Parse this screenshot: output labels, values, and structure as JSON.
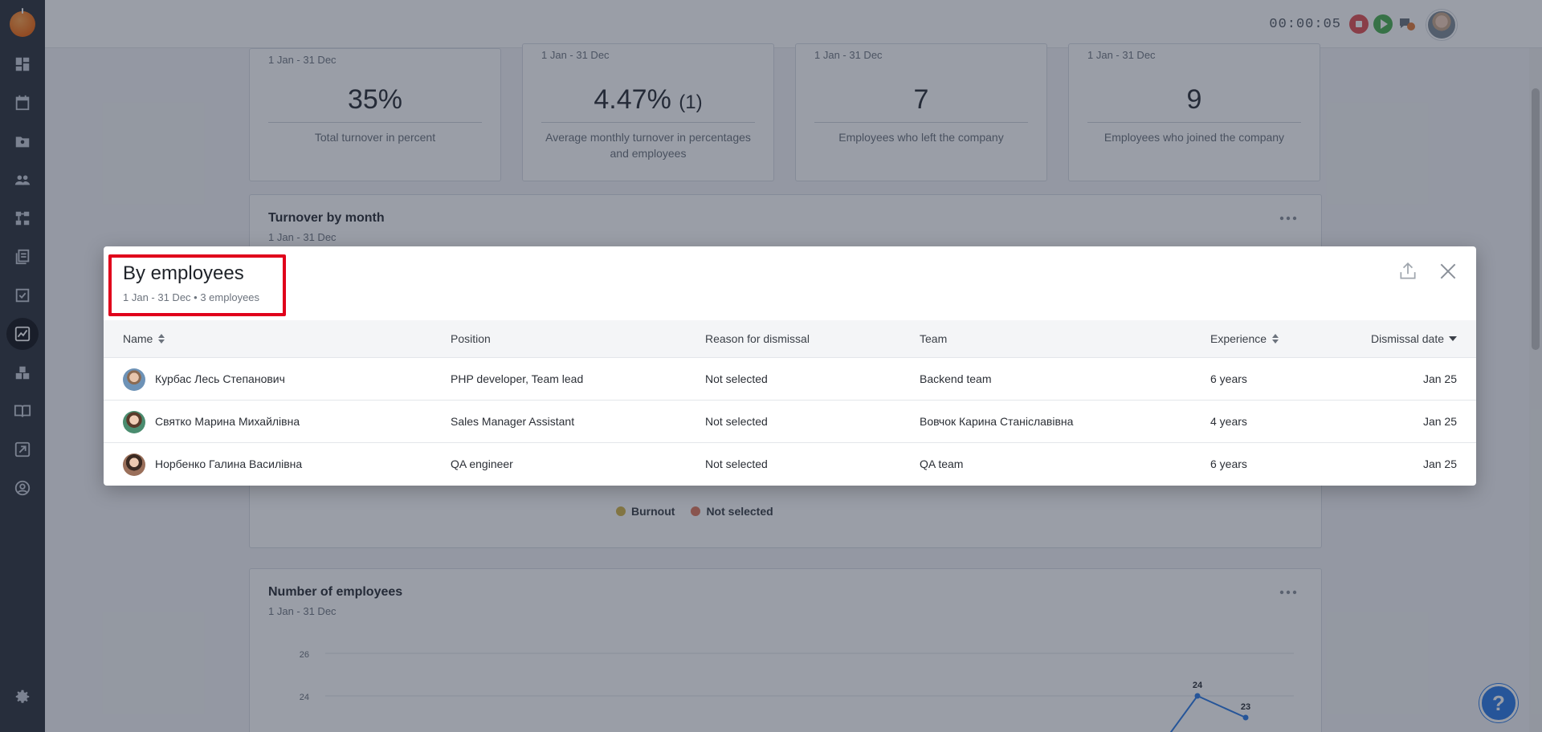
{
  "header": {
    "timer": "00:00:05"
  },
  "stats": [
    {
      "range": "1 Jan - 31 Dec",
      "value": "35%",
      "value_sub": "",
      "label": "Total turnover in percent"
    },
    {
      "range": "1 Jan - 31 Dec",
      "value": "4.47%",
      "value_sub": "(1)",
      "label": "Average monthly turnover in percentages and employees"
    },
    {
      "range": "1 Jan - 31 Dec",
      "value": "7",
      "value_sub": "",
      "label": "Employees who left the company"
    },
    {
      "range": "1 Jan - 31 Dec",
      "value": "9",
      "value_sub": "",
      "label": "Employees who joined the company"
    }
  ],
  "turnover_panel": {
    "title": "Turnover by month",
    "range": "1 Jan - 31 Dec",
    "legend": [
      {
        "label": "Burnout",
        "color": "#d4b54a"
      },
      {
        "label": "Not selected",
        "color": "#e07a5f"
      }
    ]
  },
  "employees_panel": {
    "title": "Number of employees",
    "range": "1 Jan - 31 Dec"
  },
  "chart_data": {
    "type": "line",
    "title": "Number of employees",
    "yticks": [
      26,
      24
    ],
    "points": [
      {
        "label": "24",
        "y": 24
      },
      {
        "label": "23",
        "y": 23
      }
    ]
  },
  "modal": {
    "title": "By employees",
    "subtitle": "1 Jan - 31 Dec • 3 employees",
    "columns": {
      "name": "Name",
      "position": "Position",
      "reason": "Reason for dismissal",
      "team": "Team",
      "experience": "Experience",
      "date": "Dismissal date"
    },
    "rows": [
      {
        "name": "Курбас Лесь Степанович",
        "position": "PHP developer, Team lead",
        "reason": "Not selected",
        "team": "Backend team",
        "experience": "6 years",
        "date": "Jan 25"
      },
      {
        "name": "Святко Марина Михайлівна",
        "position": "Sales Manager Assistant",
        "reason": "Not selected",
        "team": "Вовчок Карина Станіславівна",
        "experience": "4 years",
        "date": "Jan 25"
      },
      {
        "name": "Норбенко Галина Василівна",
        "position": "QA engineer",
        "reason": "Not selected",
        "team": "QA team",
        "experience": "6 years",
        "date": "Jan 25"
      }
    ]
  },
  "help": {
    "label": "?"
  }
}
